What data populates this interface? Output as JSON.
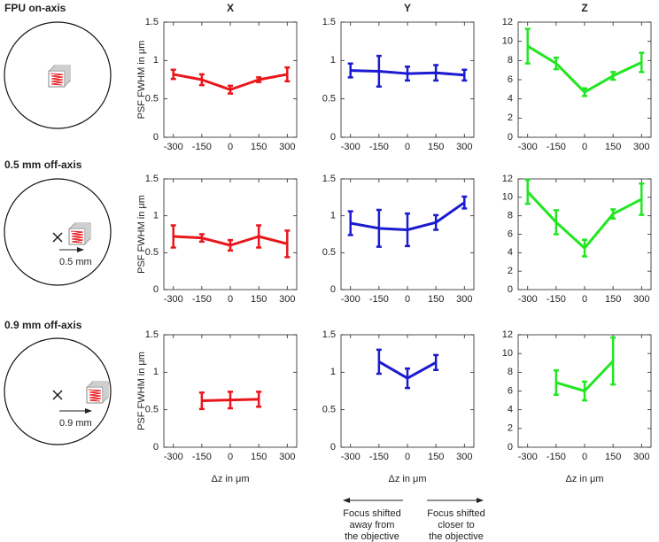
{
  "row_labels": [
    "FPU on-axis",
    "0.5 mm off-axis",
    "0.9 mm off-axis"
  ],
  "scale_labels": [
    "0.5 mm",
    "0.9 mm"
  ],
  "annotations": [
    [
      "Focus shifted",
      "away from",
      "the objective"
    ],
    [
      "Focus shifted",
      "closer to",
      "the objective"
    ]
  ],
  "chart_data": [
    {
      "type": "line",
      "title": "X",
      "ylabel": "PSF FWHM in μm",
      "x": [
        -300,
        -150,
        0,
        150,
        300
      ],
      "xlim": [
        -350,
        350
      ],
      "xticks": [
        -300,
        -150,
        0,
        150,
        300
      ],
      "ylim": [
        0,
        1.5
      ],
      "yticks": [
        0,
        0.5,
        1,
        1.5
      ],
      "series": [
        {
          "color": "#e8171b",
          "values": [
            0.82,
            0.75,
            0.62,
            0.75,
            0.82
          ],
          "errors": [
            0.06,
            0.07,
            0.05,
            0.03,
            0.09
          ]
        }
      ]
    },
    {
      "type": "line",
      "title": "Y",
      "x": [
        -300,
        -150,
        0,
        150,
        300
      ],
      "xlim": [
        -350,
        350
      ],
      "xticks": [
        -300,
        -150,
        0,
        150,
        300
      ],
      "ylim": [
        0,
        1.5
      ],
      "yticks": [
        0,
        0.5,
        1,
        1.5
      ],
      "series": [
        {
          "color": "#1a1ad0",
          "values": [
            0.87,
            0.86,
            0.83,
            0.84,
            0.81
          ],
          "errors": [
            0.09,
            0.2,
            0.09,
            0.1,
            0.07
          ]
        }
      ]
    },
    {
      "type": "line",
      "title": "Z",
      "x": [
        -300,
        -150,
        0,
        150,
        300
      ],
      "xlim": [
        -350,
        350
      ],
      "xticks": [
        -300,
        -150,
        0,
        150,
        300
      ],
      "ylim": [
        0,
        12
      ],
      "yticks": [
        0,
        2,
        4,
        6,
        8,
        10,
        12
      ],
      "series": [
        {
          "color": "#22e622",
          "values": [
            9.5,
            7.7,
            4.7,
            6.4,
            7.8
          ],
          "errors": [
            1.8,
            0.6,
            0.4,
            0.4,
            1.0
          ]
        }
      ]
    },
    {
      "type": "line",
      "ylabel": "PSF FWHM in μm",
      "x": [
        -300,
        -150,
        0,
        150,
        300
      ],
      "xlim": [
        -350,
        350
      ],
      "xticks": [
        -300,
        -150,
        0,
        150,
        300
      ],
      "ylim": [
        0,
        1.5
      ],
      "yticks": [
        0,
        0.5,
        1,
        1.5
      ],
      "series": [
        {
          "color": "#e8171b",
          "values": [
            0.72,
            0.7,
            0.6,
            0.72,
            0.62
          ],
          "errors": [
            0.15,
            0.05,
            0.07,
            0.15,
            0.18
          ]
        }
      ]
    },
    {
      "type": "line",
      "x": [
        -300,
        -150,
        0,
        150,
        300
      ],
      "xlim": [
        -350,
        350
      ],
      "xticks": [
        -300,
        -150,
        0,
        150,
        300
      ],
      "ylim": [
        0,
        1.5
      ],
      "yticks": [
        0,
        0.5,
        1,
        1.5
      ],
      "series": [
        {
          "color": "#1a1ad0",
          "values": [
            0.9,
            0.83,
            0.81,
            0.91,
            1.18
          ],
          "errors": [
            0.16,
            0.25,
            0.22,
            0.1,
            0.08
          ]
        }
      ]
    },
    {
      "type": "line",
      "x": [
        -300,
        -150,
        0,
        150,
        300
      ],
      "xlim": [
        -350,
        350
      ],
      "xticks": [
        -300,
        -150,
        0,
        150,
        300
      ],
      "ylim": [
        0,
        12
      ],
      "yticks": [
        0,
        2,
        4,
        6,
        8,
        10,
        12
      ],
      "series": [
        {
          "color": "#22e622",
          "values": [
            10.6,
            7.3,
            4.5,
            8.2,
            9.8
          ],
          "errors": [
            1.3,
            1.3,
            0.9,
            0.5,
            1.7
          ]
        }
      ]
    },
    {
      "type": "line",
      "ylabel": "PSF FWHM in μm",
      "xlabel": "Δz in μm",
      "x": [
        -300,
        -150,
        0,
        150,
        300
      ],
      "xlim": [
        -350,
        350
      ],
      "xticks": [
        -300,
        -150,
        0,
        150,
        300
      ],
      "ylim": [
        0,
        1.5
      ],
      "yticks": [
        0,
        0.5,
        1,
        1.5
      ],
      "series": [
        {
          "color": "#e8171b",
          "values": [
            null,
            0.62,
            0.63,
            0.64,
            null
          ],
          "errors": [
            null,
            0.11,
            0.11,
            0.1,
            null
          ]
        }
      ]
    },
    {
      "type": "line",
      "xlabel": "Δz in μm",
      "x": [
        -300,
        -150,
        0,
        150,
        300
      ],
      "xlim": [
        -350,
        350
      ],
      "xticks": [
        -300,
        -150,
        0,
        150,
        300
      ],
      "ylim": [
        0,
        1.5
      ],
      "yticks": [
        0,
        0.5,
        1,
        1.5
      ],
      "series": [
        {
          "color": "#1a1ad0",
          "values": [
            null,
            1.14,
            0.92,
            1.13,
            null
          ],
          "errors": [
            null,
            0.16,
            0.13,
            0.1,
            null
          ]
        }
      ]
    },
    {
      "type": "line",
      "xlabel": "Δz in μm",
      "x": [
        -300,
        -150,
        0,
        150,
        300
      ],
      "xlim": [
        -350,
        350
      ],
      "xticks": [
        -300,
        -150,
        0,
        150,
        300
      ],
      "ylim": [
        0,
        12
      ],
      "yticks": [
        0,
        2,
        4,
        6,
        8,
        10,
        12
      ],
      "series": [
        {
          "color": "#22e622",
          "values": [
            null,
            6.9,
            6.0,
            9.2,
            null
          ],
          "errors": [
            null,
            1.3,
            1.0,
            2.5,
            null
          ]
        }
      ]
    }
  ]
}
